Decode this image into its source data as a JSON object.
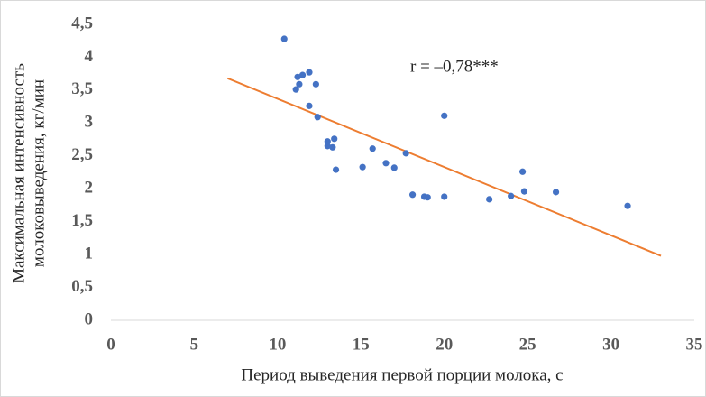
{
  "chart_data": {
    "type": "scatter",
    "x_label": "Период выведения первой порции молока, с",
    "y_label": [
      "Максимальная интенсивность",
      "молоковыведения, кг/мин"
    ],
    "annotation": "r = –0,78***",
    "color": "#4472c4",
    "x": [
      10.4,
      11.2,
      11.5,
      11.9,
      11.1,
      11.3,
      12.3,
      11.9,
      12.4,
      13.0,
      13.0,
      13.3,
      13.4,
      13.5,
      15.1,
      15.7,
      16.5,
      17.0,
      17.7,
      18.1,
      18.8,
      19.0,
      20.0,
      20.0,
      22.7,
      24.0,
      24.7,
      24.8,
      26.7,
      31.0
    ],
    "values": [
      4.28,
      3.7,
      3.73,
      3.77,
      3.51,
      3.59,
      3.59,
      3.26,
      3.09,
      2.72,
      2.65,
      2.63,
      2.76,
      2.29,
      2.33,
      2.61,
      2.39,
      2.32,
      2.54,
      1.91,
      1.88,
      1.87,
      3.11,
      1.88,
      1.84,
      1.89,
      2.26,
      1.96,
      1.95,
      1.74
    ],
    "trendline": {
      "color": "#ed7d31",
      "x": [
        7,
        33
      ],
      "values": [
        3.68,
        0.98
      ]
    },
    "xlim": [
      0,
      35
    ],
    "xticks": [
      0,
      5,
      10,
      15,
      20,
      25,
      30,
      35
    ],
    "ylim": [
      0,
      4.5
    ],
    "yticks": [
      0,
      {
        "value": 0.5,
        "label": "0,5"
      },
      1,
      {
        "value": 1.5,
        "label": "1,5"
      },
      2,
      {
        "value": 2.5,
        "label": "2,5"
      },
      3,
      {
        "value": 3.5,
        "label": "3,5"
      },
      4,
      {
        "value": 4.5,
        "label": "4,5"
      }
    ]
  }
}
